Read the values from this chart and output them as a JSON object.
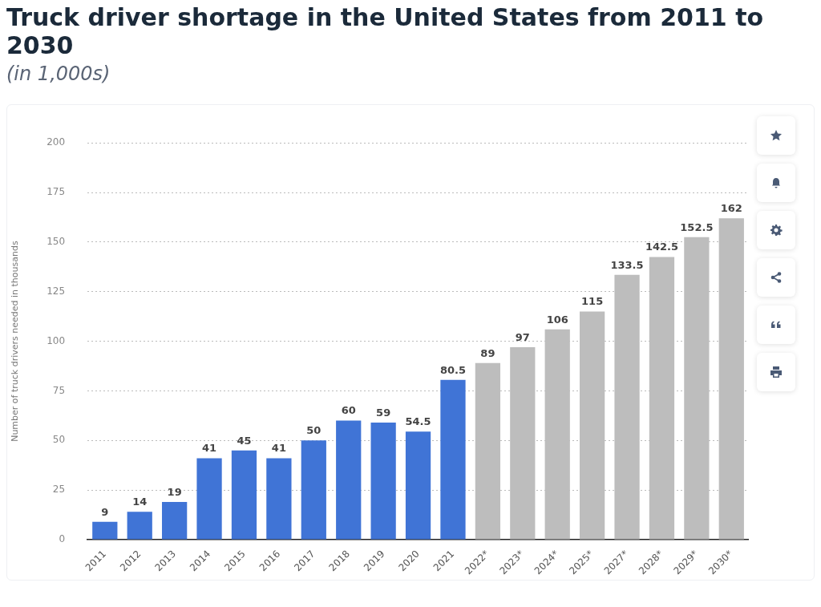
{
  "chart_data": {
    "type": "bar",
    "title": "Truck driver shortage in the United States from 2011 to 2030",
    "subtitle": "(in 1,000s)",
    "ylabel": "Number of truck drivers needed in thousands",
    "categories": [
      "2011",
      "2012",
      "2013",
      "2014",
      "2015",
      "2016",
      "2017",
      "2018",
      "2019",
      "2020",
      "2021",
      "2022*",
      "2023*",
      "2024*",
      "2025*",
      "2027*",
      "2028*",
      "2029*",
      "2030*"
    ],
    "values": [
      9,
      14,
      19,
      41,
      45,
      41,
      50,
      60,
      59,
      54.5,
      80.5,
      89,
      97,
      106,
      115,
      133.5,
      142.5,
      152.5,
      162
    ],
    "colors": [
      "#4074d6",
      "#4074d6",
      "#4074d6",
      "#4074d6",
      "#4074d6",
      "#4074d6",
      "#4074d6",
      "#4074d6",
      "#4074d6",
      "#4074d6",
      "#4074d6",
      "#bdbdbd",
      "#bdbdbd",
      "#bdbdbd",
      "#bdbdbd",
      "#bdbdbd",
      "#bdbdbd",
      "#bdbdbd",
      "#bdbdbd"
    ],
    "ylim": [
      0,
      200
    ],
    "yticks": [
      0,
      25,
      50,
      75,
      100,
      125,
      150,
      175,
      200
    ],
    "grid": "y",
    "data_labels": true
  }
}
